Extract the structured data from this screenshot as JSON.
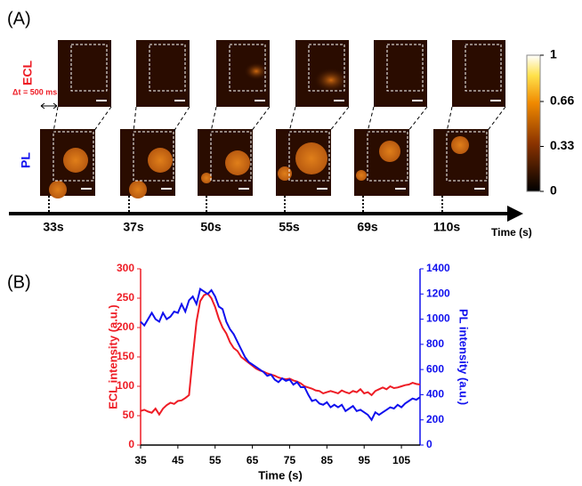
{
  "panel_a": {
    "label": "(A)",
    "row_labels": [
      "ECL",
      "PL"
    ],
    "interval_label": "Δt = 500 ms",
    "time_labels": [
      "33s",
      "37s",
      "50s",
      "55s",
      "69s",
      "110s"
    ],
    "axis_label": "Time (s)",
    "colorbar": {
      "lim": [
        0,
        1
      ],
      "ticks": [
        1,
        0.66,
        0.33,
        0
      ]
    }
  },
  "panel_b_label": "(B)",
  "chart_data": {
    "type": "line",
    "xlabel": "Time (s)",
    "ylabel": "ECL intensity (a.u.)",
    "y2label": "PL intensity (a.u.)",
    "xlim": [
      35,
      110
    ],
    "xticks": [
      35,
      45,
      55,
      65,
      75,
      85,
      95,
      105
    ],
    "ylim": [
      0,
      300
    ],
    "yticks": [
      0,
      50,
      100,
      150,
      200,
      250,
      300
    ],
    "y2lim": [
      0,
      1400
    ],
    "y2ticks": [
      0,
      200,
      400,
      600,
      800,
      1000,
      1200,
      1400
    ],
    "x": [
      35,
      36,
      37,
      38,
      39,
      40,
      41,
      42,
      43,
      44,
      45,
      46,
      47,
      48,
      49,
      50,
      51,
      52,
      53,
      54,
      55,
      56,
      57,
      58,
      59,
      60,
      61,
      62,
      63,
      64,
      65,
      66,
      67,
      68,
      69,
      70,
      71,
      72,
      73,
      74,
      75,
      76,
      77,
      78,
      79,
      80,
      81,
      82,
      83,
      84,
      85,
      86,
      87,
      88,
      89,
      90,
      91,
      92,
      93,
      94,
      95,
      96,
      97,
      98,
      99,
      100,
      101,
      102,
      103,
      104,
      105,
      106,
      107,
      108,
      109,
      110
    ],
    "series": [
      {
        "name": "ECL",
        "color": "#ee1c25",
        "values": [
          58,
          60,
          57,
          55,
          62,
          52,
          62,
          68,
          72,
          70,
          75,
          76,
          80,
          85,
          150,
          210,
          245,
          255,
          258,
          250,
          235,
          215,
          200,
          190,
          175,
          165,
          160,
          150,
          145,
          140,
          135,
          130,
          127,
          125,
          122,
          120,
          118,
          115,
          113,
          112,
          113,
          110,
          108,
          105,
          100,
          98,
          96,
          93,
          92,
          88,
          90,
          92,
          90,
          88,
          93,
          90,
          88,
          92,
          90,
          95,
          88,
          90,
          85,
          92,
          95,
          98,
          95,
          100,
          97,
          98,
          100,
          102,
          103,
          106,
          104,
          103
        ]
      },
      {
        "name": "PL",
        "color": "#1010ee",
        "axis": "y2",
        "values": [
          980,
          950,
          1000,
          1050,
          1000,
          980,
          1050,
          1000,
          1020,
          1060,
          1050,
          1120,
          1060,
          1150,
          1180,
          1120,
          1240,
          1220,
          1200,
          1230,
          1180,
          1100,
          1080,
          980,
          920,
          880,
          820,
          760,
          700,
          660,
          640,
          620,
          600,
          580,
          550,
          560,
          520,
          500,
          530,
          510,
          520,
          480,
          500,
          460,
          460,
          400,
          350,
          360,
          330,
          320,
          340,
          300,
          320,
          300,
          320,
          270,
          290,
          310,
          270,
          280,
          260,
          240,
          200,
          260,
          240,
          260,
          280,
          300,
          290,
          320,
          300,
          330,
          350,
          370,
          360,
          380
        ]
      }
    ]
  }
}
